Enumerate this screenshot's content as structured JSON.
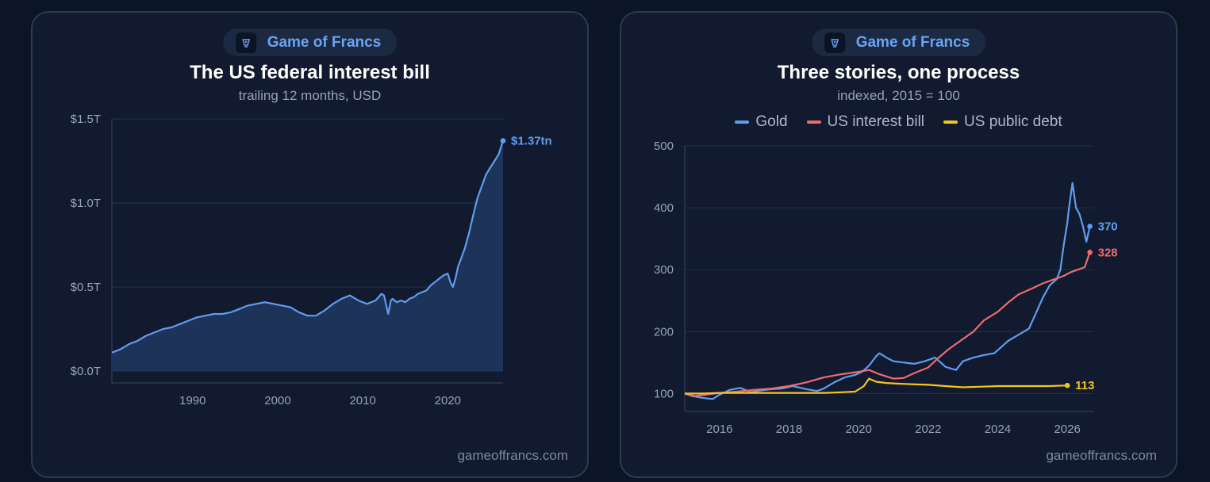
{
  "colors": {
    "background": "#0b1526",
    "card": "#111a2e",
    "accent": "#6aa4f2",
    "gold": "#5f9cf0",
    "interest": "#ec6b6e",
    "debt": "#f2c521"
  },
  "left_card": {
    "brand": {
      "icon": "brand-logo-icon",
      "name": "Game of Francs"
    },
    "footer": "gameoffrancs.com",
    "chart_data": {
      "type": "area",
      "title": "The US federal interest bill",
      "subtitle": "trailing 12 months, USD",
      "xlabel": "",
      "ylabel": "",
      "xlim": [
        1980.5,
        2026.5
      ],
      "ylim": [
        -0.07,
        1.5
      ],
      "x_ticks": [
        {
          "value": 1990,
          "label": "1990"
        },
        {
          "value": 2000,
          "label": "2000"
        },
        {
          "value": 2010,
          "label": "2010"
        },
        {
          "value": 2020,
          "label": "2020"
        }
      ],
      "y_ticks": [
        {
          "value": 0,
          "label": "$0.0T"
        },
        {
          "value": 0.5,
          "label": "$0.5T"
        },
        {
          "value": 1.0,
          "label": "$1.0T"
        },
        {
          "value": 1.5,
          "label": "$1.5T"
        }
      ],
      "grid": true,
      "series": [
        {
          "end_label": "$1.37tn",
          "x": [
            1980.5,
            1981.5,
            1982.5,
            1983.5,
            1984.5,
            1985.5,
            1986.5,
            1987.5,
            1988.5,
            1989.5,
            1990.5,
            1991.5,
            1992.5,
            1993.5,
            1994.5,
            1995.5,
            1996.5,
            1997.5,
            1998.5,
            1999.5,
            2000.5,
            2001.5,
            2002.5,
            2003.5,
            2004.5,
            2005.5,
            2006.5,
            2007.5,
            2008.5,
            2009.5,
            2010.5,
            2011.5,
            2012.2,
            2012.5,
            2013.0,
            2013.3,
            2013.5,
            2014.0,
            2014.5,
            2015.0,
            2015.5,
            2016.0,
            2016.5,
            2017.0,
            2017.5,
            2018.0,
            2018.5,
            2019.0,
            2019.5,
            2020.0,
            2020.3,
            2020.6,
            2020.9,
            2021.2,
            2021.5,
            2022.0,
            2022.5,
            2023.0,
            2023.5,
            2024.0,
            2024.5,
            2025.0,
            2025.5,
            2026.0,
            2026.3,
            2026.5
          ],
          "values": [
            0.11,
            0.13,
            0.16,
            0.18,
            0.21,
            0.23,
            0.25,
            0.26,
            0.28,
            0.3,
            0.32,
            0.33,
            0.34,
            0.34,
            0.35,
            0.37,
            0.39,
            0.4,
            0.41,
            0.4,
            0.39,
            0.38,
            0.35,
            0.33,
            0.33,
            0.36,
            0.4,
            0.43,
            0.45,
            0.42,
            0.4,
            0.42,
            0.46,
            0.45,
            0.34,
            0.42,
            0.43,
            0.41,
            0.42,
            0.41,
            0.43,
            0.44,
            0.46,
            0.47,
            0.48,
            0.51,
            0.53,
            0.55,
            0.57,
            0.58,
            0.53,
            0.5,
            0.55,
            0.62,
            0.66,
            0.73,
            0.82,
            0.93,
            1.03,
            1.1,
            1.17,
            1.21,
            1.25,
            1.29,
            1.34,
            1.37
          ]
        }
      ]
    }
  },
  "right_card": {
    "brand": {
      "icon": "brand-logo-icon",
      "name": "Game of Francs"
    },
    "footer": "gameoffrancs.com",
    "chart_data": {
      "type": "line",
      "title": "Three stories, one process",
      "subtitle": "indexed, 2015 = 100",
      "xlabel": "",
      "ylabel": "",
      "xlim": [
        2015.0,
        2026.75
      ],
      "ylim": [
        71,
        500
      ],
      "x_ticks": [
        {
          "value": 2016,
          "label": "2016"
        },
        {
          "value": 2018,
          "label": "2018"
        },
        {
          "value": 2020,
          "label": "2020"
        },
        {
          "value": 2022,
          "label": "2022"
        },
        {
          "value": 2024,
          "label": "2024"
        },
        {
          "value": 2026,
          "label": "2026"
        }
      ],
      "y_ticks": [
        {
          "value": 100,
          "label": "100"
        },
        {
          "value": 200,
          "label": "200"
        },
        {
          "value": 300,
          "label": "300"
        },
        {
          "value": 400,
          "label": "400"
        },
        {
          "value": 500,
          "label": "500"
        }
      ],
      "grid": true,
      "legend_position": "top-center",
      "series": [
        {
          "name": "Gold",
          "color": "#5f9cf0",
          "end_label": "370",
          "x": [
            2015.0,
            2015.2,
            2015.5,
            2015.8,
            2016.0,
            2016.3,
            2016.6,
            2016.9,
            2017.2,
            2017.5,
            2017.8,
            2018.1,
            2018.5,
            2018.8,
            2019.0,
            2019.3,
            2019.6,
            2019.9,
            2020.1,
            2020.3,
            2020.5,
            2020.6,
            2020.8,
            2021.0,
            2021.3,
            2021.6,
            2021.9,
            2022.2,
            2022.5,
            2022.8,
            2023.0,
            2023.3,
            2023.6,
            2023.9,
            2024.1,
            2024.3,
            2024.6,
            2024.9,
            2025.1,
            2025.3,
            2025.5,
            2025.7,
            2025.8,
            2025.9,
            2026.0,
            2026.05,
            2026.15,
            2026.25,
            2026.35,
            2026.45,
            2026.55,
            2026.65
          ],
          "values": [
            100,
            96,
            93,
            91,
            98,
            106,
            109,
            102,
            105,
            107,
            108,
            112,
            107,
            104,
            108,
            118,
            126,
            130,
            135,
            145,
            160,
            165,
            158,
            152,
            150,
            148,
            152,
            158,
            143,
            138,
            152,
            158,
            162,
            165,
            175,
            185,
            195,
            205,
            230,
            255,
            275,
            285,
            300,
            340,
            375,
            400,
            440,
            400,
            390,
            370,
            345,
            370
          ]
        },
        {
          "name": "US interest bill",
          "color": "#ec6b6e",
          "end_label": "328",
          "x": [
            2015.0,
            2015.3,
            2015.6,
            2016.0,
            2016.5,
            2017.0,
            2017.5,
            2018.0,
            2018.5,
            2019.0,
            2019.5,
            2020.0,
            2020.3,
            2020.6,
            2021.0,
            2021.3,
            2021.6,
            2022.0,
            2022.3,
            2022.6,
            2023.0,
            2023.3,
            2023.6,
            2024.0,
            2024.3,
            2024.6,
            2025.0,
            2025.3,
            2025.6,
            2025.9,
            2026.1,
            2026.3,
            2026.5,
            2026.65
          ],
          "values": [
            100,
            96,
            98,
            101,
            103,
            106,
            108,
            112,
            118,
            126,
            131,
            135,
            138,
            131,
            124,
            125,
            133,
            142,
            158,
            172,
            188,
            200,
            218,
            232,
            247,
            260,
            270,
            278,
            284,
            290,
            296,
            300,
            304,
            328
          ]
        },
        {
          "name": "US public debt",
          "color": "#f2c521",
          "end_label": "113",
          "x": [
            2015.0,
            2015.5,
            2016.0,
            2016.5,
            2017.0,
            2017.5,
            2018.0,
            2018.5,
            2019.0,
            2019.5,
            2019.9,
            2020.15,
            2020.3,
            2020.5,
            2020.8,
            2021.1,
            2021.5,
            2022.0,
            2022.5,
            2023.0,
            2023.5,
            2024.0,
            2024.5,
            2025.0,
            2025.5,
            2026.0
          ],
          "values": [
            100,
            100,
            101,
            101,
            101,
            101,
            101,
            101,
            101,
            102,
            103,
            112,
            124,
            119,
            117,
            116,
            115,
            114,
            112,
            110,
            111,
            112,
            112,
            112,
            112,
            113
          ]
        }
      ]
    }
  }
}
